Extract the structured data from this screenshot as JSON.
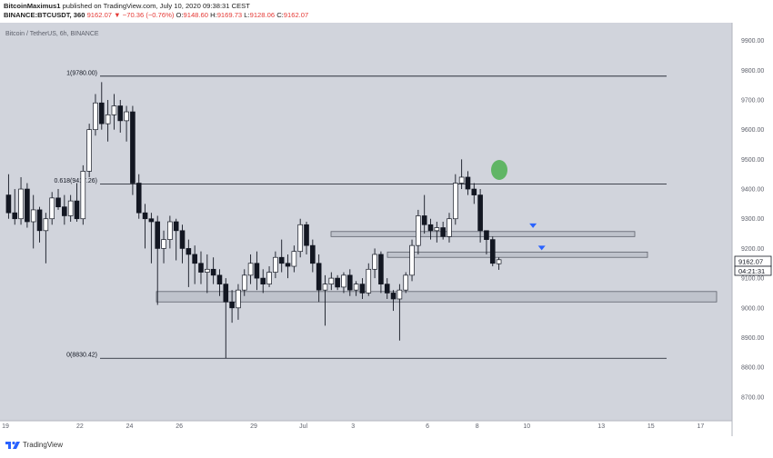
{
  "header": {
    "author": "BitcoinMaximus1",
    "published": "published on TradingView.com, July 10, 2020 09:38:31 CEST",
    "symbol": "BINANCE:BTCUSDT, 360",
    "price": "9162.07",
    "change": "▼ −70.36 (−0.76%)",
    "o_label": "O:",
    "o_value": "9148.60",
    "h_label": "H:",
    "h_value": "9169.73",
    "l_label": "L:",
    "l_value": "9128.06",
    "c_label": "C:",
    "c_value": "9162.07"
  },
  "chart_title": "Bitcoin / TetherUS, 6h, BINANCE",
  "price_tag": {
    "value": "9162.07",
    "countdown": "04:21:31"
  },
  "footer": {
    "brand": "TradingView"
  },
  "colors": {
    "background": "#d1d4dc",
    "up": "#ffffff",
    "down": "#131722",
    "accent": "#2962ff",
    "highlight": "#4caf50"
  },
  "chart_data": {
    "type": "candlestick",
    "ylim": [
      8620,
      9960
    ],
    "yticks": [
      8700,
      8800,
      8900,
      9000,
      9100,
      9200,
      9300,
      9400,
      9500,
      9600,
      9700,
      9800,
      9900
    ],
    "xlim": [
      0,
      30.5
    ],
    "xticks": [
      {
        "x": 0,
        "label": "19"
      },
      {
        "x": 3,
        "label": "22"
      },
      {
        "x": 5,
        "label": "24"
      },
      {
        "x": 7,
        "label": "26"
      },
      {
        "x": 10,
        "label": "29"
      },
      {
        "x": 12,
        "label": "Jul"
      },
      {
        "x": 14,
        "label": "3"
      },
      {
        "x": 17,
        "label": "6"
      },
      {
        "x": 19,
        "label": "8"
      },
      {
        "x": 21,
        "label": "10"
      },
      {
        "x": 24,
        "label": "13"
      },
      {
        "x": 26,
        "label": "15"
      },
      {
        "x": 28,
        "label": "17"
      }
    ],
    "candles_per_day": 4,
    "candles": [
      [
        9380,
        9450,
        9300,
        9320
      ],
      [
        9320,
        9400,
        9280,
        9300
      ],
      [
        9300,
        9440,
        9280,
        9400
      ],
      [
        9400,
        9420,
        9270,
        9290
      ],
      [
        9290,
        9380,
        9200,
        9330
      ],
      [
        9330,
        9340,
        9220,
        9260
      ],
      [
        9260,
        9320,
        9150,
        9300
      ],
      [
        9300,
        9390,
        9280,
        9370
      ],
      [
        9370,
        9400,
        9330,
        9340
      ],
      [
        9340,
        9380,
        9280,
        9310
      ],
      [
        9310,
        9380,
        9290,
        9360
      ],
      [
        9360,
        9420,
        9290,
        9300
      ],
      [
        9300,
        9480,
        9280,
        9460
      ],
      [
        9460,
        9620,
        9440,
        9600
      ],
      [
        9600,
        9720,
        9580,
        9690
      ],
      [
        9690,
        9760,
        9600,
        9620
      ],
      [
        9620,
        9700,
        9560,
        9650
      ],
      [
        9650,
        9720,
        9600,
        9680
      ],
      [
        9680,
        9700,
        9590,
        9630
      ],
      [
        9630,
        9680,
        9560,
        9660
      ],
      [
        9660,
        9680,
        9380,
        9420
      ],
      [
        9420,
        9450,
        9300,
        9320
      ],
      [
        9320,
        9350,
        9200,
        9300
      ],
      [
        9300,
        9320,
        9150,
        9290
      ],
      [
        9290,
        9310,
        9010,
        9200
      ],
      [
        9200,
        9260,
        9150,
        9230
      ],
      [
        9230,
        9310,
        9200,
        9290
      ],
      [
        9290,
        9300,
        9160,
        9260
      ],
      [
        9260,
        9280,
        9150,
        9200
      ],
      [
        9200,
        9230,
        9070,
        9180
      ],
      [
        9180,
        9210,
        9080,
        9150
      ],
      [
        9150,
        9190,
        9080,
        9120
      ],
      [
        9120,
        9180,
        9050,
        9130
      ],
      [
        9130,
        9170,
        9080,
        9110
      ],
      [
        9110,
        9130,
        9040,
        9080
      ],
      [
        9080,
        9100,
        8830,
        9020
      ],
      [
        9020,
        9060,
        8950,
        9000
      ],
      [
        9000,
        9080,
        8960,
        9060
      ],
      [
        9060,
        9130,
        9040,
        9110
      ],
      [
        9110,
        9180,
        9080,
        9150
      ],
      [
        9150,
        9190,
        9060,
        9100
      ],
      [
        9100,
        9130,
        9050,
        9080
      ],
      [
        9080,
        9140,
        9070,
        9120
      ],
      [
        9120,
        9190,
        9100,
        9170
      ],
      [
        9170,
        9230,
        9120,
        9150
      ],
      [
        9150,
        9180,
        9100,
        9140
      ],
      [
        9140,
        9210,
        9120,
        9190
      ],
      [
        9190,
        9300,
        9170,
        9280
      ],
      [
        9280,
        9290,
        9180,
        9210
      ],
      [
        9210,
        9230,
        9120,
        9150
      ],
      [
        9150,
        9180,
        9020,
        9060
      ],
      [
        9060,
        9110,
        8940,
        9080
      ],
      [
        9080,
        9120,
        9060,
        9100
      ],
      [
        9100,
        9110,
        9060,
        9070
      ],
      [
        9070,
        9120,
        9050,
        9110
      ],
      [
        9110,
        9130,
        9040,
        9060
      ],
      [
        9060,
        9090,
        9040,
        9080
      ],
      [
        9080,
        9100,
        9030,
        9050
      ],
      [
        9050,
        9150,
        9040,
        9130
      ],
      [
        9130,
        9200,
        9100,
        9180
      ],
      [
        9180,
        9190,
        9050,
        9080
      ],
      [
        9080,
        9100,
        9030,
        9050
      ],
      [
        9050,
        9060,
        8990,
        9030
      ],
      [
        9030,
        9080,
        8890,
        9060
      ],
      [
        9060,
        9120,
        9050,
        9110
      ],
      [
        9110,
        9230,
        9090,
        9210
      ],
      [
        9210,
        9330,
        9180,
        9310
      ],
      [
        9310,
        9380,
        9250,
        9280
      ],
      [
        9280,
        9300,
        9230,
        9260
      ],
      [
        9260,
        9290,
        9220,
        9270
      ],
      [
        9270,
        9290,
        9230,
        9240
      ],
      [
        9240,
        9320,
        9220,
        9300
      ],
      [
        9300,
        9450,
        9280,
        9420
      ],
      [
        9420,
        9500,
        9400,
        9440
      ],
      [
        9440,
        9460,
        9380,
        9400
      ],
      [
        9400,
        9420,
        9350,
        9380
      ],
      [
        9380,
        9400,
        9220,
        9260
      ],
      [
        9260,
        9260,
        9180,
        9230
      ],
      [
        9230,
        9240,
        9140,
        9150
      ],
      [
        9148.6,
        9169.73,
        9128.06,
        9162.07
      ]
    ],
    "fib_levels": [
      {
        "label": "1(9780.00)",
        "value": 9780
      },
      {
        "label": "0.618(9417.26)",
        "value": 9417.26
      },
      {
        "label": "0(8830.42)",
        "value": 8830.42
      }
    ],
    "zones": [
      {
        "low": 9020,
        "high": 9055
      },
      {
        "low": 9240,
        "high": 9257
      },
      {
        "low": 9170,
        "high": 9188
      }
    ],
    "markers": [
      {
        "x": 21.25,
        "value": 9275
      },
      {
        "x": 21.6,
        "value": 9200
      }
    ]
  }
}
